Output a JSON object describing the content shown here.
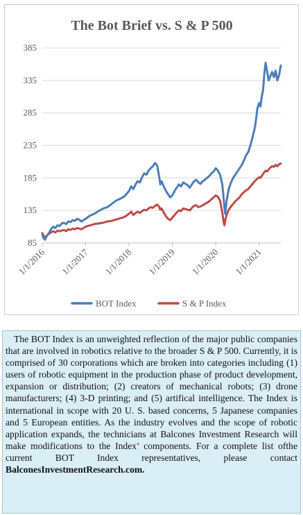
{
  "chart_data": {
    "type": "line",
    "title": "The Bot Brief vs. S & P 500",
    "xlabel": "",
    "ylabel": "",
    "ylim": [
      85,
      385
    ],
    "yticks": [
      85,
      135,
      185,
      235,
      285,
      335,
      385
    ],
    "x_tick_labels": [
      "1/1/2016",
      "1/1/2017",
      "1/1/2018",
      "1/1/2019",
      "1/1/2020",
      "1/1/2021"
    ],
    "x_range": [
      2016.0,
      2021.5
    ],
    "grid": "horizontal",
    "legend_position": "bottom",
    "series": [
      {
        "name": "BOT Index",
        "color": "#4a7ebb",
        "x": [
          2016.0,
          2016.03,
          2016.06,
          2016.1,
          2016.15,
          2016.2,
          2016.25,
          2016.3,
          2016.35,
          2016.4,
          2016.45,
          2016.5,
          2016.55,
          2016.6,
          2016.65,
          2016.7,
          2016.75,
          2016.8,
          2016.85,
          2016.9,
          2016.95,
          2017.0,
          2017.1,
          2017.2,
          2017.3,
          2017.4,
          2017.5,
          2017.6,
          2017.7,
          2017.8,
          2017.9,
          2018.0,
          2018.05,
          2018.1,
          2018.15,
          2018.2,
          2018.25,
          2018.3,
          2018.35,
          2018.4,
          2018.45,
          2018.5,
          2018.55,
          2018.6,
          2018.65,
          2018.7,
          2018.72,
          2018.75,
          2018.8,
          2018.85,
          2018.9,
          2018.95,
          2019.0,
          2019.05,
          2019.1,
          2019.15,
          2019.2,
          2019.25,
          2019.3,
          2019.35,
          2019.4,
          2019.45,
          2019.5,
          2019.55,
          2019.6,
          2019.65,
          2019.7,
          2019.75,
          2019.8,
          2019.85,
          2019.9,
          2019.95,
          2020.0,
          2020.05,
          2020.1,
          2020.15,
          2020.18,
          2020.2,
          2020.22,
          2020.25,
          2020.3,
          2020.35,
          2020.4,
          2020.45,
          2020.5,
          2020.55,
          2020.6,
          2020.65,
          2020.7,
          2020.75,
          2020.8,
          2020.85,
          2020.9,
          2020.93,
          2020.96,
          2021.0,
          2021.03,
          2021.06,
          2021.09,
          2021.12,
          2021.15,
          2021.18,
          2021.22,
          2021.26,
          2021.3,
          2021.34,
          2021.38,
          2021.42,
          2021.46,
          2021.5
        ],
        "values": [
          98,
          92,
          90,
          95,
          100,
          106,
          110,
          108,
          112,
          111,
          115,
          116,
          114,
          118,
          117,
          120,
          119,
          122,
          121,
          118,
          120,
          122,
          127,
          130,
          134,
          138,
          140,
          145,
          150,
          153,
          157,
          165,
          172,
          168,
          175,
          180,
          178,
          186,
          192,
          190,
          196,
          200,
          203,
          208,
          204,
          185,
          175,
          180,
          172,
          165,
          160,
          155,
          158,
          165,
          170,
          175,
          172,
          178,
          176,
          174,
          170,
          175,
          180,
          182,
          178,
          176,
          180,
          182,
          185,
          188,
          192,
          195,
          200,
          196,
          190,
          175,
          155,
          140,
          130,
          150,
          168,
          178,
          185,
          190,
          195,
          200,
          205,
          212,
          220,
          225,
          235,
          248,
          262,
          275,
          292,
          300,
          295,
          310,
          320,
          345,
          362,
          350,
          335,
          342,
          348,
          340,
          350,
          335,
          343,
          358
        ]
      },
      {
        "name": "S & P Index",
        "color": "#be4b48",
        "x": [
          2016.0,
          2016.03,
          2016.06,
          2016.1,
          2016.15,
          2016.2,
          2016.25,
          2016.3,
          2016.35,
          2016.4,
          2016.45,
          2016.5,
          2016.55,
          2016.6,
          2016.65,
          2016.7,
          2016.75,
          2016.8,
          2016.85,
          2016.9,
          2016.95,
          2017.0,
          2017.1,
          2017.2,
          2017.3,
          2017.4,
          2017.5,
          2017.6,
          2017.7,
          2017.8,
          2017.9,
          2018.0,
          2018.05,
          2018.1,
          2018.15,
          2018.2,
          2018.25,
          2018.3,
          2018.35,
          2018.4,
          2018.45,
          2018.5,
          2018.55,
          2018.6,
          2018.65,
          2018.7,
          2018.72,
          2018.75,
          2018.8,
          2018.85,
          2018.9,
          2018.95,
          2019.0,
          2019.05,
          2019.1,
          2019.15,
          2019.2,
          2019.25,
          2019.3,
          2019.35,
          2019.4,
          2019.45,
          2019.5,
          2019.55,
          2019.6,
          2019.65,
          2019.7,
          2019.75,
          2019.8,
          2019.85,
          2019.9,
          2019.95,
          2020.0,
          2020.05,
          2020.1,
          2020.15,
          2020.18,
          2020.2,
          2020.22,
          2020.25,
          2020.3,
          2020.35,
          2020.4,
          2020.45,
          2020.5,
          2020.55,
          2020.6,
          2020.65,
          2020.7,
          2020.75,
          2020.8,
          2020.85,
          2020.9,
          2020.93,
          2020.96,
          2021.0,
          2021.03,
          2021.06,
          2021.09,
          2021.12,
          2021.15,
          2021.18,
          2021.22,
          2021.26,
          2021.3,
          2021.34,
          2021.38,
          2021.42,
          2021.46,
          2021.5
        ],
        "values": [
          100,
          96,
          94,
          96,
          99,
          101,
          103,
          101,
          104,
          103,
          104,
          105,
          103,
          106,
          105,
          107,
          106,
          108,
          107,
          106,
          108,
          110,
          112,
          114,
          115,
          116,
          118,
          119,
          121,
          123,
          125,
          130,
          133,
          128,
          131,
          133,
          131,
          134,
          136,
          135,
          138,
          140,
          139,
          142,
          144,
          140,
          136,
          138,
          132,
          126,
          122,
          120,
          124,
          128,
          132,
          135,
          134,
          138,
          137,
          136,
          135,
          139,
          142,
          143,
          140,
          141,
          143,
          145,
          147,
          149,
          152,
          155,
          158,
          156,
          150,
          132,
          118,
          112,
          120,
          128,
          136,
          141,
          145,
          149,
          152,
          155,
          160,
          163,
          166,
          168,
          172,
          176,
          180,
          182,
          184,
          186,
          185,
          188,
          191,
          194,
          196,
          195,
          198,
          201,
          203,
          202,
          205,
          203,
          206,
          207
        ]
      }
    ]
  },
  "description": {
    "text": "The BOT Index is an unweighted reflection of the major public companies that are involved in robotics relative to the broader S & P 500. Currently, it is comprised of 30 corporations which are broken into categories including (1) users of robotic equipment in the production phase of product development, expansion or distribution; (2) creators of mechanical robots; (3) drone manufacturers; (4) 3-D printing; and (5) artifical intelligence. The Index is international in scope with 20 U. S. based concerns, 5 Japanese companies and 5 European entities. As the industry evolves and the scope of robotic application expands, the technicians at Balcones Investment Research will make modifications to the Index’ components. For a  complete list ofthe current BOT Index representatives, please contact ",
    "link": "BalconesInvestmentResearch.com."
  }
}
